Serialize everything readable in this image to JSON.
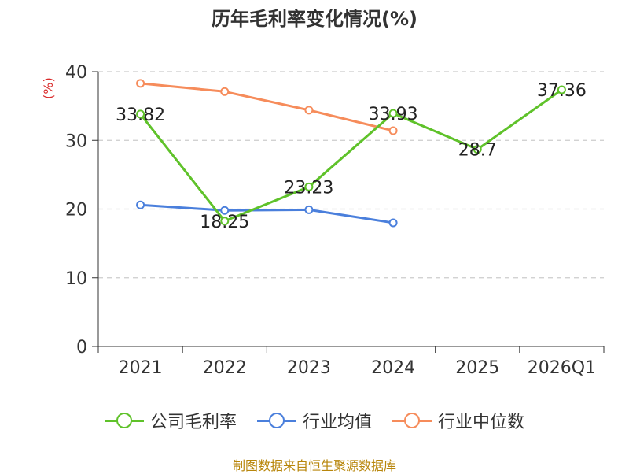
{
  "title": "历年毛利率变化情况(%)",
  "unit": "(%)",
  "source": "制图数据来自恒生聚源数据库",
  "colors": {
    "company": "#5fc22a",
    "industry_avg": "#4a7fdc",
    "industry_median": "#f68c5b"
  },
  "chart_data": {
    "type": "line",
    "title": "历年毛利率变化情况(%)",
    "ylabel": "(%)",
    "ylim": [
      0,
      40
    ],
    "yticks": [
      "0",
      "10",
      "20",
      "30",
      "40"
    ],
    "categories": [
      "2021",
      "2022",
      "2023",
      "2024",
      "2025",
      "2026Q1"
    ],
    "grid": true,
    "legend_position": "bottom",
    "series": [
      {
        "name": "公司毛利率",
        "values": [
          33.82,
          18.25,
          23.23,
          33.93,
          28.7,
          37.36
        ],
        "labels": [
          "33.82",
          "18.25",
          "23.23",
          "33.93",
          "28.7",
          "37.36"
        ]
      },
      {
        "name": "行业均值",
        "values": [
          20.6,
          19.8,
          19.9,
          18.0,
          null,
          null
        ]
      },
      {
        "name": "行业中位数",
        "values": [
          38.3,
          37.1,
          34.4,
          31.4,
          null,
          null
        ]
      }
    ]
  }
}
